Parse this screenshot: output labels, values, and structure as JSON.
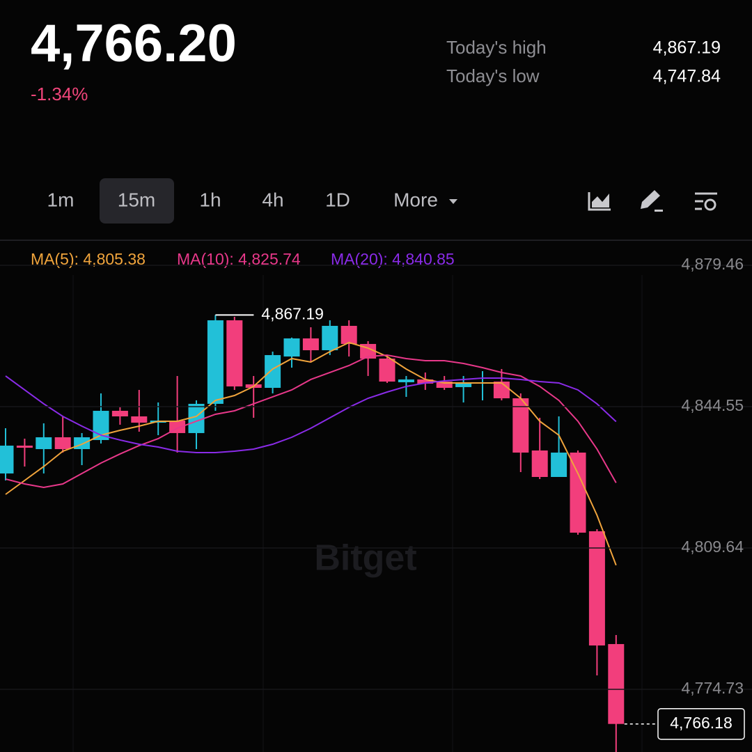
{
  "header": {
    "price": "4,766.20",
    "change": "-1.34%",
    "high_label": "Today's high",
    "high_value": "4,867.19",
    "low_label": "Today's low",
    "low_value": "4,747.84"
  },
  "tabs": {
    "items": [
      "1m",
      "15m",
      "1h",
      "4h",
      "1D",
      "More"
    ],
    "active": "15m"
  },
  "chart_data": {
    "type": "candlestick",
    "ylim": [
      4759.25,
      4885.65
    ],
    "yticks": [
      {
        "value": 4879.46,
        "label": "4,879.46"
      },
      {
        "value": 4844.55,
        "label": "4,844.55"
      },
      {
        "value": 4809.64,
        "label": "4,809.64"
      },
      {
        "value": 4774.73,
        "label": "4,774.73"
      }
    ],
    "up_color": "#22c0d8",
    "down_color": "#f23e7c",
    "grid": true,
    "watermark": "Bitget",
    "candles": {
      "open": [
        4828.04,
        4834.92,
        4834.06,
        4836.98,
        4834.06,
        4836.3,
        4843.52,
        4842.14,
        4840.59,
        4841.11,
        4838.02,
        4845.24,
        4865.87,
        4850.05,
        4849.19,
        4856.93,
        4861.4,
        4858.48,
        4864.5,
        4860.03,
        4856.42,
        4850.57,
        4851.26,
        4850.74,
        4849.37,
        4850.23,
        4850.74,
        4846.61,
        4833.72,
        4827.18,
        4833.2,
        4813.77,
        4785.91
      ],
      "high": [
        4839.22,
        4836.64,
        4840.42,
        4842.14,
        4838.02,
        4847.82,
        4844.38,
        4848.68,
        4845.58,
        4852.12,
        4846.1,
        4867.19,
        4866.73,
        4852.12,
        4858.14,
        4861.6,
        4864.15,
        4865.87,
        4865.87,
        4860.72,
        4856.93,
        4852.12,
        4852.98,
        4852.12,
        4852.12,
        4853.32,
        4853.84,
        4847.82,
        4841.8,
        4842.14,
        4833.72,
        4814.28,
        4788.14
      ],
      "low": [
        4826.32,
        4829.76,
        4828.04,
        4833.2,
        4830.1,
        4835.44,
        4840.08,
        4838.36,
        4837.5,
        4833.2,
        4834.06,
        4843.52,
        4848.68,
        4841.8,
        4847.82,
        4854.18,
        4855.56,
        4857.28,
        4856.93,
        4852.12,
        4850.4,
        4846.96,
        4848.68,
        4848.68,
        4845.58,
        4846.1,
        4846.1,
        4828.38,
        4826.67,
        4827.18,
        4812.91,
        4778.17,
        4759.25
      ],
      "close": [
        4834.92,
        4834.4,
        4836.98,
        4834.06,
        4836.98,
        4843.52,
        4842.14,
        4840.59,
        4841.11,
        4838.02,
        4845.24,
        4865.87,
        4849.54,
        4849.19,
        4857.28,
        4861.4,
        4858.48,
        4864.5,
        4860.03,
        4856.42,
        4850.74,
        4851.26,
        4850.23,
        4849.19,
        4850.23,
        4850.57,
        4846.61,
        4833.2,
        4827.18,
        4833.2,
        4813.42,
        4785.56,
        4766.18
      ]
    },
    "series": [
      {
        "name": "MA(5): 4,805.38",
        "color": "#f0a43c",
        "values": [
          4822.88,
          4826.32,
          4829.76,
          4833.54,
          4835.26,
          4837.5,
          4838.7,
          4839.73,
          4840.94,
          4840.94,
          4842.14,
          4846.1,
          4847.3,
          4849.54,
          4853.84,
          4856.42,
          4855.56,
          4858.14,
          4860.37,
          4859.0,
          4856.93,
          4853.84,
          4851.26,
          4850.4,
          4850.4,
          4850.4,
          4850.4,
          4846.61,
          4840.94,
          4837.5,
          4828.04,
          4817.72,
          4805.38
        ]
      },
      {
        "name": "MA(10): 4,825.74",
        "color": "#e8388a",
        "values": [
          4826.67,
          4825.46,
          4824.6,
          4825.46,
          4828.04,
          4830.62,
          4832.86,
          4834.92,
          4836.64,
          4839.22,
          4840.94,
          4842.66,
          4843.52,
          4845.24,
          4846.96,
          4848.68,
          4851.26,
          4852.98,
          4854.7,
          4856.93,
          4857.28,
          4856.42,
          4855.9,
          4855.9,
          4855.21,
          4854.18,
          4852.98,
          4852.12,
          4849.54,
          4846.1,
          4840.94,
          4834.06,
          4825.74
        ]
      },
      {
        "name": "MA(20): 4,840.85",
        "color": "#8a2be8",
        "values": [
          4852.12,
          4848.68,
          4845.24,
          4842.14,
          4839.73,
          4837.5,
          4836.3,
          4835.26,
          4834.58,
          4833.54,
          4833.2,
          4833.2,
          4833.54,
          4834.06,
          4835.26,
          4836.98,
          4839.22,
          4841.8,
          4844.38,
          4846.61,
          4848.16,
          4849.54,
          4850.4,
          4850.91,
          4851.26,
          4851.6,
          4851.6,
          4851.26,
          4850.74,
          4850.4,
          4848.68,
          4845.24,
          4840.85
        ]
      }
    ],
    "max_label": "4,867.19",
    "last_price_label": "4,766.18"
  }
}
